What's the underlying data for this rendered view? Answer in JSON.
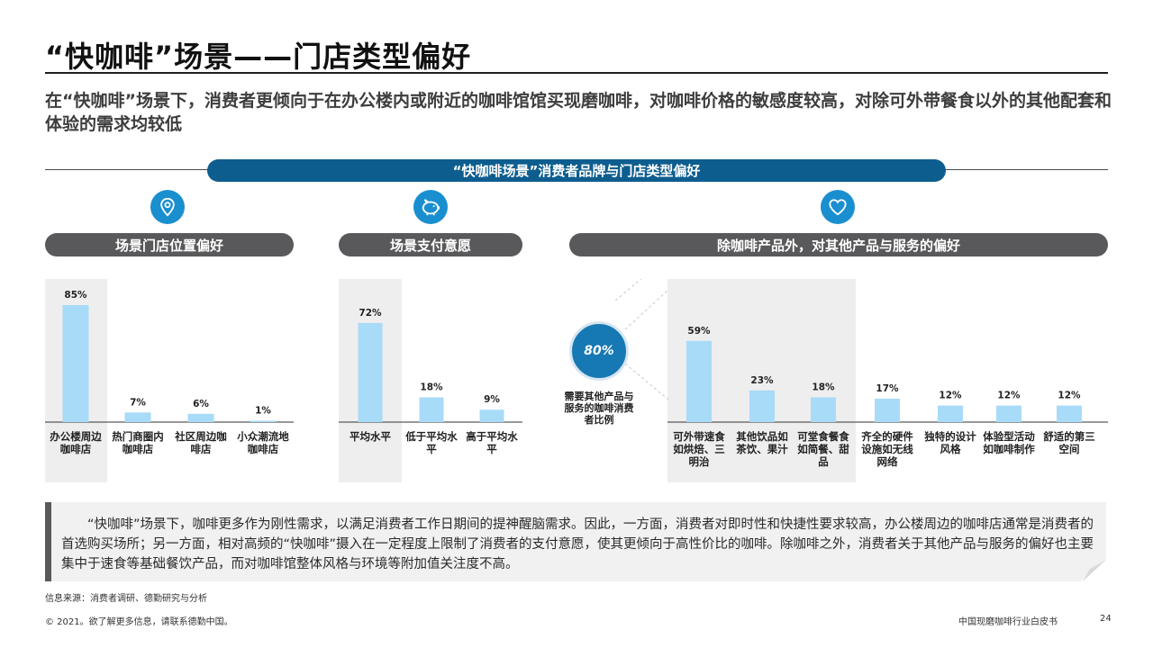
{
  "title": "“快咖啡”场景——门店类型偏好",
  "subtitle": "在“快咖啡”场景下，消费者更倾向于在办公楼内或附近的咖啡馆馆买现磨咖啡，对咖啡价格的敏感度较高，对除可外带餐食以外的其他配套和体验的需求均较低",
  "banner": "“快咖啡场景”消费者品牌与门店类型偏好",
  "sections": [
    {
      "label": "场景门店位置偏好",
      "icon": "location-pin-icon"
    },
    {
      "label": "场景支付意愿",
      "icon": "piggy-bank-icon"
    },
    {
      "label": "除咖啡产品外，对其他产品与服务的偏好",
      "icon": "heart-icon"
    }
  ],
  "callout": {
    "value": "80%",
    "caption": "需要其他产品与服务的咖啡消费者比例"
  },
  "chart_data": [
    {
      "type": "bar",
      "categories": [
        "办公楼周边咖啡店",
        "热门商圈内咖啡店",
        "社区周边咖啡店",
        "小众潮流地咖啡店"
      ],
      "values": [
        85,
        7,
        6,
        1
      ],
      "value_labels": [
        "85%",
        "7%",
        "6%",
        "1%"
      ],
      "highlight": [
        0
      ]
    },
    {
      "type": "bar",
      "categories": [
        "平均水平",
        "低于平均水平",
        "高于平均水平"
      ],
      "values": [
        72,
        18,
        9
      ],
      "value_labels": [
        "72%",
        "18%",
        "9%"
      ],
      "highlight": [
        0
      ]
    },
    {
      "type": "bar",
      "categories": [
        "可外带速食如烘焙、三明治",
        "其他饮品如茶饮、果汁",
        "可堂食餐食如简餐、甜品",
        "齐全的硬件设施如无线网络",
        "独特的设计风格",
        "体验型活动如咖啡制作",
        "舒适的第三空间"
      ],
      "values": [
        59,
        23,
        18,
        17,
        12,
        12,
        12
      ],
      "value_labels": [
        "59%",
        "23%",
        "18%",
        "17%",
        "12%",
        "12%",
        "12%"
      ],
      "highlight": [
        0,
        1,
        2
      ]
    }
  ],
  "note": "“快咖啡”场景下，咖啡更多作为刚性需求，以满足消费者工作日期间的提神醒脑需求。因此，一方面，消费者对即时性和快捷性要求较高，办公楼周边的咖啡店通常是消费者的首选购买场所；另一方面，相对高频的“快咖啡”摄入在一定程度上限制了消费者的支付意愿，使其更倾向于高性价比的咖啡。除咖啡之外，消费者关于其他产品与服务的偏好也主要集中于速食等基础餐饮产品，而对咖啡馆整体风格与环境等附加值关注度不高。",
  "footer": {
    "source": "信息来源：消费者调研、德勤研究与分析",
    "copyright": "© 2021。欲了解更多信息，请联系德勤中国。",
    "report": "中国现磨咖啡行业白皮书",
    "page": "24"
  },
  "colors": {
    "bar": "#a8dbf8",
    "accent": "#0e5d8f",
    "icon": "#1a8fd0",
    "pill": "#59595b",
    "highlight_bg": "#eeeeee"
  }
}
